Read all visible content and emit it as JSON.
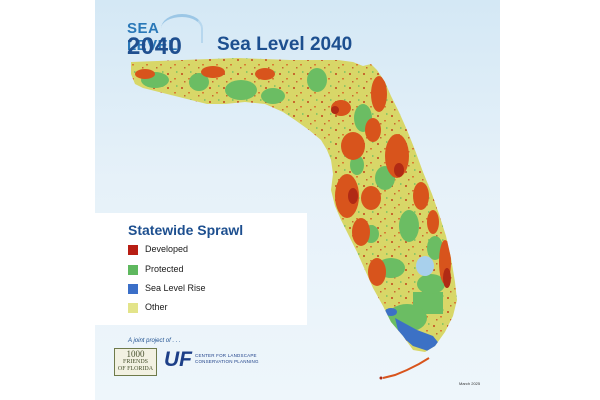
{
  "logo": {
    "line1": "SEA LEVEL",
    "line2": "2040"
  },
  "title": "Sea Level 2040",
  "legend": {
    "title": "Statewide Sprawl",
    "items": [
      {
        "label": "Developed",
        "color": "#b81e14"
      },
      {
        "label": "Protected",
        "color": "#5fb85f"
      },
      {
        "label": "Sea Level Rise",
        "color": "#3b6fc8"
      },
      {
        "label": "Other",
        "color": "#e3e48a"
      }
    ]
  },
  "credits": {
    "joint": "A joint project of . . .",
    "thousand_friends": [
      "1000",
      "FRIENDS",
      "OF FLORIDA"
    ],
    "uf": "UF",
    "uf_center": [
      "CENTER FOR LANDSCAPE",
      "CONSERVATION PLANNING"
    ]
  },
  "date": "March 2025",
  "map_colors": {
    "land": "#d8d768",
    "protected": "#6bbd63",
    "developed": "#d8541c",
    "developed_dark": "#b02a14",
    "sea_level_rise": "#3c71c5",
    "water": "#d4e8f5"
  }
}
